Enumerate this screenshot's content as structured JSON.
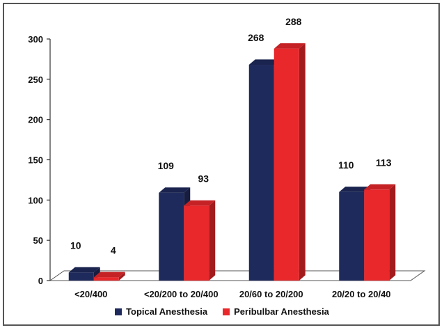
{
  "chart_data": {
    "type": "bar",
    "categories": [
      "<20/400",
      "<20/200 to 20/400",
      "20/60 to 20/200",
      "20/20 to 20/40"
    ],
    "series": [
      {
        "name": "Topical Anesthesia",
        "values": [
          10,
          109,
          268,
          110
        ],
        "color": "#1f2a5c"
      },
      {
        "name": "Peribulbar Anesthesia",
        "values": [
          4,
          93,
          288,
          113
        ],
        "color": "#e8282b"
      }
    ],
    "y_ticks": [
      0,
      50,
      100,
      150,
      200,
      250,
      300
    ],
    "ylim": [
      0,
      300
    ],
    "grid": false,
    "legend_position": "bottom",
    "style": "3d"
  }
}
